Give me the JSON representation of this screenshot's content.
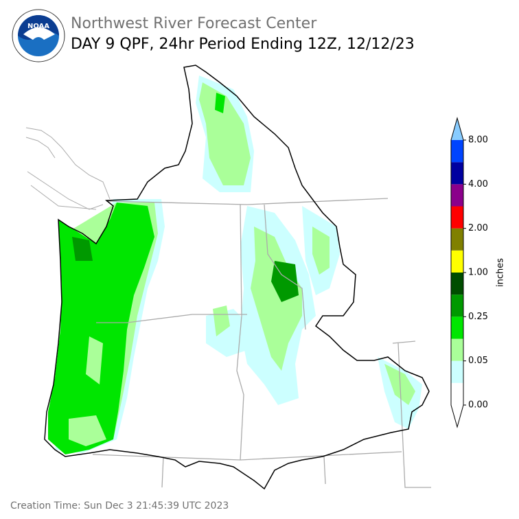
{
  "header": {
    "agency": "Northwest River Forecast Center",
    "product": "DAY 9 QPF, 24hr Period Ending 12Z, 12/12/23",
    "logo_text": "NOAA"
  },
  "colorbar": {
    "label": "inches",
    "colors": [
      "#ffffff",
      "#ccffff",
      "#aaff99",
      "#00e600",
      "#009900",
      "#004d00",
      "#ffff00",
      "#808000",
      "#ff0000",
      "#8b008b",
      "#0000a0",
      "#0044ff"
    ],
    "under_color": "#ffffff",
    "over_color": "#88ccff",
    "ticks": [
      {
        "value": 0,
        "label": "0.00"
      },
      {
        "value": 0.05,
        "label": "0.05"
      },
      {
        "value": 0.25,
        "label": "0.25"
      },
      {
        "value": 1,
        "label": "1.00"
      },
      {
        "value": 2,
        "label": "2.00"
      },
      {
        "value": 4,
        "label": "4.00"
      },
      {
        "value": 8,
        "label": "8.00"
      }
    ]
  },
  "footer": {
    "creation_time": "Creation Time: Sun Dec 3 21:45:39 UTC 2023"
  }
}
